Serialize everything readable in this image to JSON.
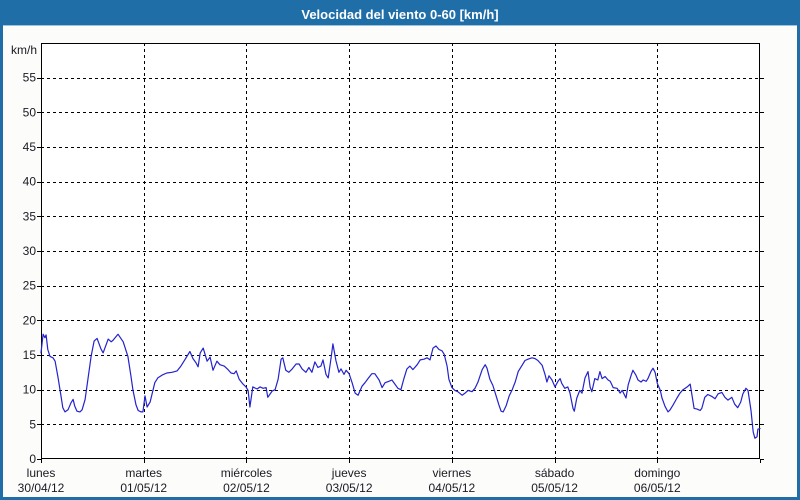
{
  "window": {
    "title": "Velocidad del viento 0-60 [km/h]"
  },
  "colors": {
    "frame": "#206ea8",
    "titlebar_bg": "#206ea8",
    "titlebar_text": "#ffffff",
    "background": "#fcfcfa",
    "plot_bg": "#ffffff",
    "grid": "#000000",
    "axis": "#000000",
    "label_text": "#1a1a24",
    "line": "#2323cd"
  },
  "chart_data": {
    "type": "line",
    "title": "Velocidad del viento 0-60 [km/h]",
    "ylabel": "km/h",
    "ylim": [
      0,
      60
    ],
    "ytick_step": 5,
    "ytick_labels": [
      0,
      5,
      10,
      15,
      20,
      25,
      30,
      35,
      40,
      45,
      50,
      55
    ],
    "grid": "dashed",
    "legend": "none",
    "x_unit": "hours",
    "xlim": [
      0,
      168
    ],
    "day_tick_hours": [
      0,
      24,
      48,
      72,
      96,
      120,
      144,
      168
    ],
    "x_day_labels": [
      {
        "weekday": "lunes",
        "date": "30/04/12",
        "hour": 0
      },
      {
        "weekday": "martes",
        "date": "01/05/12",
        "hour": 24
      },
      {
        "weekday": "miércoles",
        "date": "02/05/12",
        "hour": 48
      },
      {
        "weekday": "jueves",
        "date": "03/05/12",
        "hour": 72
      },
      {
        "weekday": "viernes",
        "date": "04/05/12",
        "hour": 96
      },
      {
        "weekday": "sábado",
        "date": "05/05/12",
        "hour": 120
      },
      {
        "weekday": "domingo",
        "date": "06/05/12",
        "hour": 144
      }
    ],
    "series": [
      {
        "name": "Velocidad del viento",
        "color": "#2323cd",
        "points": [
          [
            0.0,
            15.3
          ],
          [
            0.5,
            18.0
          ],
          [
            0.9,
            17.5
          ],
          [
            1.2,
            17.9
          ],
          [
            1.6,
            15.8
          ],
          [
            2.1,
            14.8
          ],
          [
            2.8,
            14.6
          ],
          [
            3.3,
            14.1
          ],
          [
            4.0,
            11.7
          ],
          [
            4.7,
            9.0
          ],
          [
            5.1,
            7.4
          ],
          [
            5.6,
            6.8
          ],
          [
            6.3,
            7.1
          ],
          [
            7.0,
            8.1
          ],
          [
            7.5,
            8.6
          ],
          [
            7.9,
            7.6
          ],
          [
            8.4,
            6.9
          ],
          [
            9.1,
            6.8
          ],
          [
            9.6,
            7.1
          ],
          [
            10.3,
            8.6
          ],
          [
            11.0,
            11.7
          ],
          [
            11.7,
            14.8
          ],
          [
            12.4,
            17.0
          ],
          [
            13.1,
            17.4
          ],
          [
            14.0,
            15.9
          ],
          [
            14.5,
            15.3
          ],
          [
            15.7,
            17.3
          ],
          [
            16.4,
            16.9
          ],
          [
            16.8,
            17.1
          ],
          [
            18.0,
            18.0
          ],
          [
            19.2,
            16.9
          ],
          [
            20.3,
            14.8
          ],
          [
            21.0,
            12.0
          ],
          [
            21.5,
            9.9
          ],
          [
            22.2,
            7.8
          ],
          [
            22.7,
            7.0
          ],
          [
            23.4,
            6.8
          ],
          [
            23.8,
            6.8
          ],
          [
            24.3,
            9.1
          ],
          [
            24.8,
            7.5
          ],
          [
            25.5,
            8.2
          ],
          [
            26.6,
            11.0
          ],
          [
            27.3,
            11.7
          ],
          [
            28.3,
            12.1
          ],
          [
            29.4,
            12.4
          ],
          [
            30.6,
            12.5
          ],
          [
            31.8,
            12.7
          ],
          [
            32.7,
            13.4
          ],
          [
            33.7,
            14.4
          ],
          [
            34.8,
            15.5
          ],
          [
            35.5,
            14.5
          ],
          [
            36.2,
            13.9
          ],
          [
            36.7,
            13.3
          ],
          [
            37.2,
            15.3
          ],
          [
            37.9,
            16.0
          ],
          [
            38.8,
            14.1
          ],
          [
            39.5,
            14.7
          ],
          [
            40.2,
            12.8
          ],
          [
            41.1,
            14.1
          ],
          [
            41.8,
            13.6
          ],
          [
            42.8,
            13.4
          ],
          [
            43.7,
            12.9
          ],
          [
            44.4,
            12.4
          ],
          [
            45.1,
            12.3
          ],
          [
            45.6,
            12.7
          ],
          [
            46.3,
            11.5
          ],
          [
            47.2,
            10.8
          ],
          [
            47.9,
            10.4
          ],
          [
            48.4,
            9.9
          ],
          [
            48.8,
            7.5
          ],
          [
            49.5,
            10.4
          ],
          [
            50.5,
            10.1
          ],
          [
            51.2,
            10.4
          ],
          [
            51.9,
            10.2
          ],
          [
            52.6,
            10.3
          ],
          [
            53.0,
            8.9
          ],
          [
            54.0,
            9.8
          ],
          [
            54.7,
            10.0
          ],
          [
            55.4,
            11.5
          ],
          [
            56.1,
            14.4
          ],
          [
            56.5,
            14.6
          ],
          [
            57.2,
            12.8
          ],
          [
            57.9,
            12.5
          ],
          [
            58.7,
            13.0
          ],
          [
            59.6,
            13.7
          ],
          [
            60.3,
            13.7
          ],
          [
            61.0,
            13.0
          ],
          [
            61.9,
            12.5
          ],
          [
            62.6,
            13.2
          ],
          [
            63.3,
            12.5
          ],
          [
            64.0,
            14.0
          ],
          [
            64.7,
            13.2
          ],
          [
            65.4,
            13.4
          ],
          [
            65.9,
            14.3
          ],
          [
            66.6,
            12.2
          ],
          [
            67.1,
            11.7
          ],
          [
            67.8,
            14.7
          ],
          [
            68.2,
            16.6
          ],
          [
            68.9,
            14.2
          ],
          [
            69.6,
            12.5
          ],
          [
            70.1,
            13.0
          ],
          [
            70.8,
            12.2
          ],
          [
            71.3,
            12.8
          ],
          [
            72.0,
            12.3
          ],
          [
            72.7,
            11.0
          ],
          [
            73.4,
            9.5
          ],
          [
            74.1,
            9.2
          ],
          [
            75.0,
            10.5
          ],
          [
            75.7,
            11.0
          ],
          [
            76.4,
            11.6
          ],
          [
            77.3,
            12.3
          ],
          [
            78.0,
            12.3
          ],
          [
            79.0,
            11.4
          ],
          [
            79.7,
            10.3
          ],
          [
            80.4,
            11.0
          ],
          [
            81.3,
            11.2
          ],
          [
            82.0,
            11.4
          ],
          [
            82.7,
            10.8
          ],
          [
            83.4,
            10.2
          ],
          [
            84.1,
            10.0
          ],
          [
            84.8,
            11.6
          ],
          [
            85.5,
            13.0
          ],
          [
            86.2,
            13.4
          ],
          [
            86.9,
            12.9
          ],
          [
            87.9,
            13.6
          ],
          [
            88.6,
            14.3
          ],
          [
            89.5,
            14.4
          ],
          [
            90.2,
            14.6
          ],
          [
            90.9,
            14.3
          ],
          [
            91.6,
            16.0
          ],
          [
            92.3,
            16.3
          ],
          [
            93.0,
            15.8
          ],
          [
            93.7,
            15.6
          ],
          [
            94.2,
            15.1
          ],
          [
            94.9,
            13.4
          ],
          [
            95.3,
            11.5
          ],
          [
            96.0,
            10.3
          ],
          [
            96.7,
            9.9
          ],
          [
            97.4,
            9.7
          ],
          [
            98.4,
            9.2
          ],
          [
            99.1,
            9.5
          ],
          [
            99.8,
            9.9
          ],
          [
            100.7,
            9.7
          ],
          [
            101.4,
            10.2
          ],
          [
            102.1,
            11.1
          ],
          [
            103.1,
            12.9
          ],
          [
            103.8,
            13.6
          ],
          [
            104.2,
            13.1
          ],
          [
            104.9,
            11.5
          ],
          [
            105.6,
            10.6
          ],
          [
            106.3,
            9.2
          ],
          [
            107.0,
            7.8
          ],
          [
            107.5,
            6.9
          ],
          [
            108.0,
            6.8
          ],
          [
            108.7,
            7.7
          ],
          [
            109.4,
            9.1
          ],
          [
            110.1,
            10.0
          ],
          [
            110.8,
            11.1
          ],
          [
            111.5,
            12.6
          ],
          [
            112.4,
            13.5
          ],
          [
            113.1,
            14.2
          ],
          [
            113.8,
            14.4
          ],
          [
            114.7,
            14.6
          ],
          [
            115.4,
            14.5
          ],
          [
            116.1,
            14.2
          ],
          [
            117.1,
            13.5
          ],
          [
            117.8,
            12.1
          ],
          [
            118.2,
            11.1
          ],
          [
            118.7,
            12.0
          ],
          [
            119.4,
            11.4
          ],
          [
            120.1,
            10.4
          ],
          [
            120.8,
            11.2
          ],
          [
            121.3,
            11.6
          ],
          [
            121.7,
            10.9
          ],
          [
            122.4,
            10.2
          ],
          [
            123.1,
            10.4
          ],
          [
            123.6,
            9.5
          ],
          [
            124.3,
            7.3
          ],
          [
            124.6,
            6.9
          ],
          [
            125.2,
            8.8
          ],
          [
            125.9,
            9.9
          ],
          [
            126.4,
            9.5
          ],
          [
            127.1,
            11.7
          ],
          [
            127.8,
            12.6
          ],
          [
            128.3,
            10.4
          ],
          [
            128.7,
            9.7
          ],
          [
            129.4,
            11.6
          ],
          [
            130.1,
            11.4
          ],
          [
            130.6,
            12.6
          ],
          [
            131.1,
            11.6
          ],
          [
            131.8,
            11.9
          ],
          [
            132.5,
            11.4
          ],
          [
            133.0,
            11.2
          ],
          [
            133.7,
            10.3
          ],
          [
            134.6,
            10.2
          ],
          [
            135.3,
            9.5
          ],
          [
            135.8,
            9.9
          ],
          [
            136.7,
            8.8
          ],
          [
            137.2,
            10.7
          ],
          [
            137.9,
            12.1
          ],
          [
            138.3,
            12.8
          ],
          [
            139.0,
            12.1
          ],
          [
            139.5,
            11.4
          ],
          [
            140.2,
            11.1
          ],
          [
            140.7,
            11.4
          ],
          [
            141.4,
            11.2
          ],
          [
            141.8,
            11.6
          ],
          [
            142.5,
            12.6
          ],
          [
            143.0,
            13.1
          ],
          [
            143.5,
            12.5
          ],
          [
            144.0,
            10.9
          ],
          [
            144.7,
            9.9
          ],
          [
            145.1,
            8.8
          ],
          [
            145.8,
            7.6
          ],
          [
            146.5,
            6.8
          ],
          [
            147.0,
            7.1
          ],
          [
            147.7,
            7.8
          ],
          [
            148.6,
            8.8
          ],
          [
            149.3,
            9.5
          ],
          [
            150.0,
            10.0
          ],
          [
            151.0,
            10.4
          ],
          [
            151.7,
            10.8
          ],
          [
            152.6,
            7.3
          ],
          [
            153.3,
            7.2
          ],
          [
            154.0,
            7.0
          ],
          [
            154.4,
            7.3
          ],
          [
            155.1,
            8.9
          ],
          [
            155.8,
            9.3
          ],
          [
            156.8,
            9.0
          ],
          [
            157.5,
            8.7
          ],
          [
            158.2,
            9.4
          ],
          [
            159.1,
            9.6
          ],
          [
            159.8,
            8.9
          ],
          [
            160.5,
            8.5
          ],
          [
            161.4,
            8.9
          ],
          [
            162.1,
            7.9
          ],
          [
            162.8,
            7.4
          ],
          [
            163.5,
            8.2
          ],
          [
            164.0,
            9.4
          ],
          [
            164.7,
            10.2
          ],
          [
            165.2,
            9.9
          ],
          [
            165.9,
            7.0
          ],
          [
            166.4,
            3.9
          ],
          [
            166.8,
            3.0
          ],
          [
            167.3,
            3.2
          ],
          [
            167.5,
            4.3
          ],
          [
            168.0,
            4.4
          ]
        ]
      }
    ]
  }
}
